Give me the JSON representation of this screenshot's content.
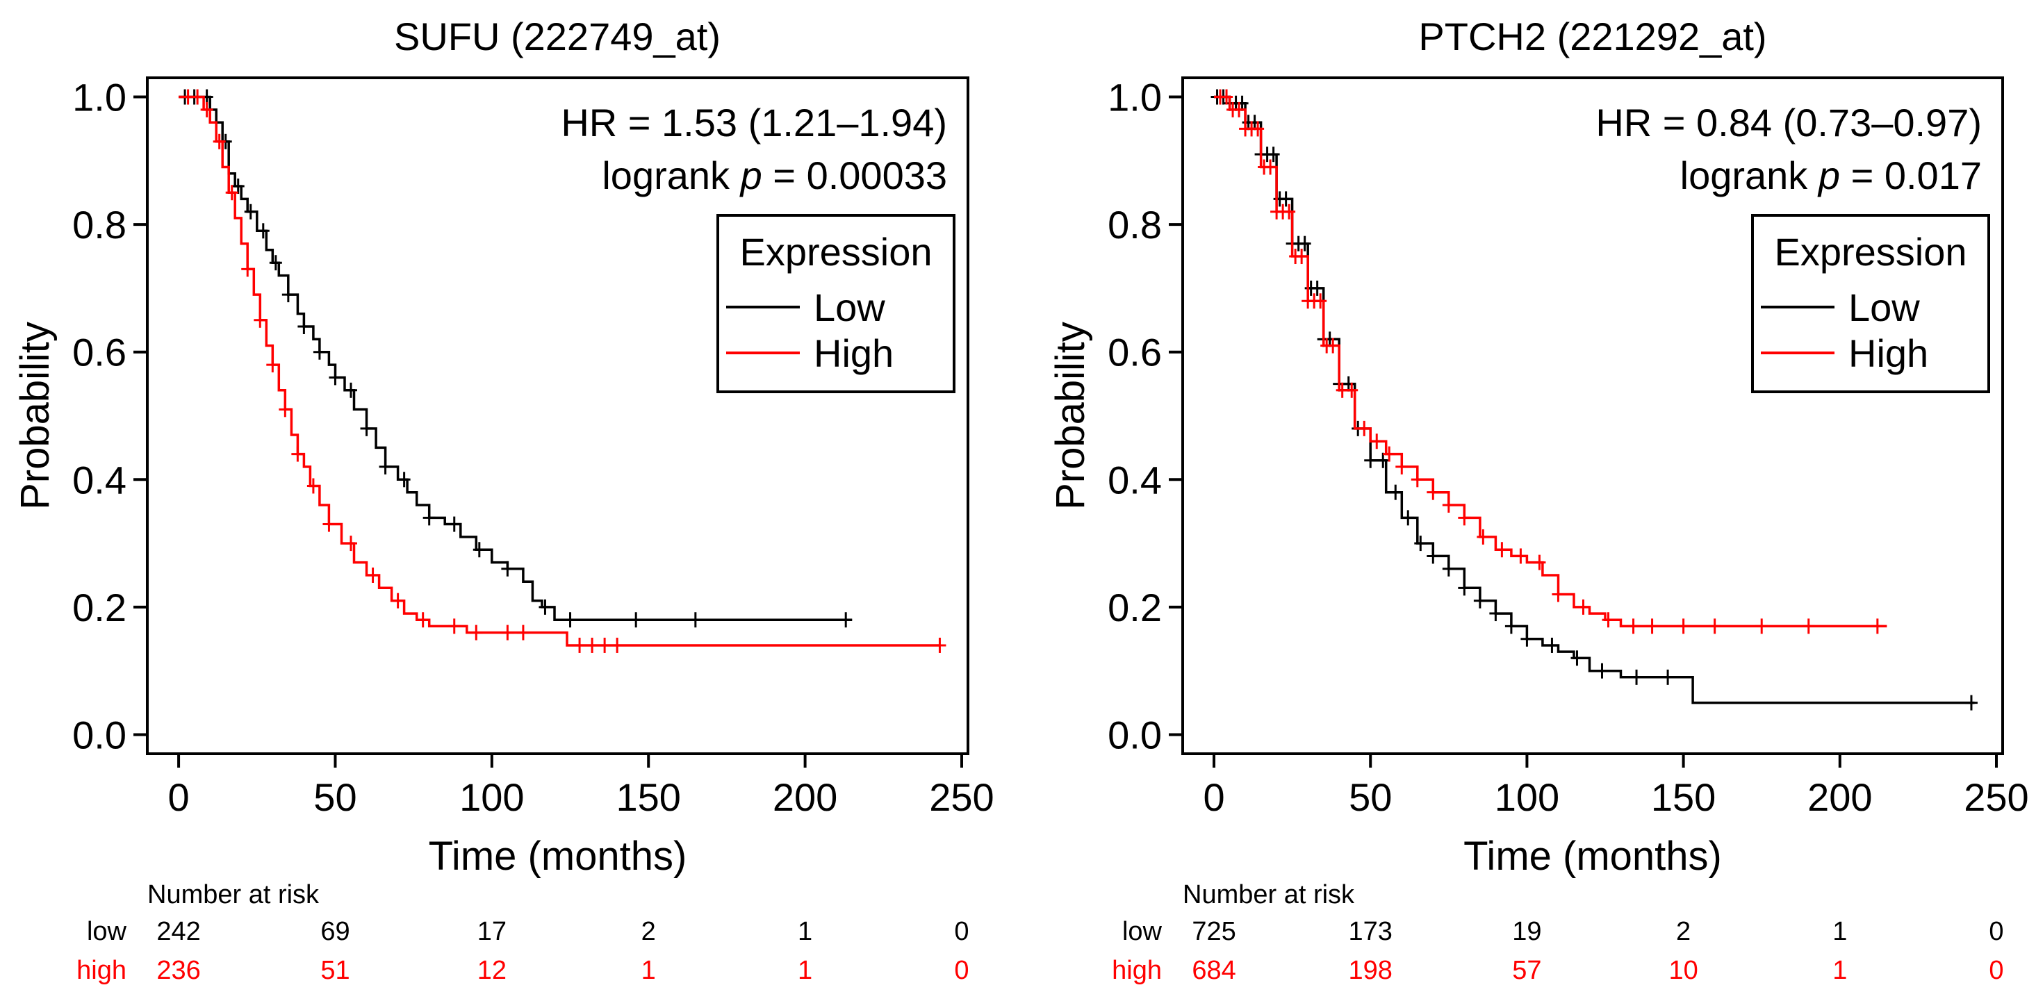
{
  "chart_data": [
    {
      "type": "line",
      "subtype": "kaplan-meier",
      "title": "SUFU (222749_at)",
      "xlabel": "Time (months)",
      "ylabel": "Probability",
      "xlim": [
        -10,
        252
      ],
      "ylim": [
        -0.03,
        1.03
      ],
      "xticks": [
        "0",
        "50",
        "100",
        "150",
        "200",
        "250"
      ],
      "xtick_values": [
        0,
        50,
        100,
        150,
        200,
        250
      ],
      "yticks": [
        "0.0",
        "0.2",
        "0.4",
        "0.6",
        "0.8",
        "1.0"
      ],
      "ytick_values": [
        0,
        0.2,
        0.4,
        0.6,
        0.8,
        1.0
      ],
      "hr_text": "HR = 1.53 (1.21–1.94)",
      "logrank_prefix": "logrank ",
      "logrank_p": "p",
      "logrank_value": " = 0.00033",
      "legend_title": "Expression",
      "legend_position": "top-right",
      "series": [
        {
          "name": "Low",
          "color": "#000000",
          "x": [
            0,
            8,
            10,
            12,
            14,
            16,
            18,
            20,
            22,
            25,
            28,
            30,
            32,
            35,
            38,
            40,
            43,
            45,
            48,
            50,
            53,
            56,
            60,
            63,
            66,
            70,
            73,
            76,
            80,
            85,
            90,
            95,
            100,
            105,
            110,
            113,
            116,
            120,
            123,
            215
          ],
          "y": [
            1.0,
            1.0,
            0.98,
            0.96,
            0.93,
            0.88,
            0.86,
            0.84,
            0.82,
            0.79,
            0.76,
            0.74,
            0.72,
            0.69,
            0.66,
            0.64,
            0.62,
            0.6,
            0.58,
            0.56,
            0.54,
            0.51,
            0.48,
            0.45,
            0.42,
            0.4,
            0.38,
            0.36,
            0.34,
            0.33,
            0.31,
            0.29,
            0.27,
            0.26,
            0.24,
            0.21,
            0.2,
            0.18,
            0.18,
            0.18
          ],
          "censor_x": [
            2,
            5,
            9,
            12,
            15,
            19,
            23,
            27,
            31,
            35,
            40,
            45,
            50,
            55,
            60,
            66,
            72,
            80,
            88,
            96,
            105,
            117,
            125,
            146,
            165,
            213
          ]
        },
        {
          "name": "High",
          "color": "#ff0000",
          "x": [
            0,
            6,
            8,
            10,
            12,
            14,
            16,
            18,
            20,
            22,
            24,
            26,
            28,
            30,
            32,
            34,
            36,
            38,
            40,
            42,
            45,
            48,
            52,
            56,
            60,
            64,
            68,
            72,
            76,
            80,
            85,
            92,
            100,
            110,
            120,
            124,
            243
          ],
          "y": [
            1.0,
            1.0,
            0.98,
            0.96,
            0.93,
            0.89,
            0.85,
            0.81,
            0.77,
            0.73,
            0.69,
            0.65,
            0.61,
            0.58,
            0.54,
            0.51,
            0.47,
            0.44,
            0.42,
            0.39,
            0.36,
            0.33,
            0.3,
            0.27,
            0.25,
            0.23,
            0.21,
            0.19,
            0.18,
            0.17,
            0.17,
            0.16,
            0.16,
            0.16,
            0.16,
            0.14,
            0.14
          ],
          "censor_x": [
            3,
            6,
            9,
            13,
            17,
            22,
            26,
            30,
            34,
            38,
            43,
            48,
            55,
            62,
            70,
            78,
            88,
            95,
            105,
            110,
            128,
            132,
            136,
            140,
            243
          ]
        }
      ],
      "risk_table": {
        "header": "Number at risk",
        "times": [
          0,
          50,
          100,
          150,
          200,
          250
        ],
        "rows": [
          {
            "label": "low",
            "color": "#000000",
            "values": [
              "242",
              "69",
              "17",
              "2",
              "1",
              "0"
            ]
          },
          {
            "label": "high",
            "color": "#ff0000",
            "values": [
              "236",
              "51",
              "12",
              "1",
              "1",
              "0"
            ]
          }
        ]
      }
    },
    {
      "type": "line",
      "subtype": "kaplan-meier",
      "title": "PTCH2 (221292_at)",
      "xlabel": "Time (months)",
      "ylabel": "Probability",
      "xlim": [
        -10,
        252
      ],
      "ylim": [
        -0.03,
        1.03
      ],
      "xticks": [
        "0",
        "50",
        "100",
        "150",
        "200",
        "250"
      ],
      "xtick_values": [
        0,
        50,
        100,
        150,
        200,
        250
      ],
      "yticks": [
        "0.0",
        "0.2",
        "0.4",
        "0.6",
        "0.8",
        "1.0"
      ],
      "ytick_values": [
        0,
        0.2,
        0.4,
        0.6,
        0.8,
        1.0
      ],
      "hr_text": "HR = 0.84 (0.73–0.97)",
      "logrank_prefix": "logrank ",
      "logrank_p": "p",
      "logrank_value": " = 0.017",
      "legend_title": "Expression",
      "legend_position": "top-right",
      "series": [
        {
          "name": "Low",
          "color": "#000000",
          "x": [
            0,
            5,
            10,
            15,
            20,
            25,
            30,
            35,
            40,
            45,
            50,
            55,
            60,
            65,
            70,
            75,
            80,
            85,
            90,
            95,
            100,
            105,
            110,
            115,
            120,
            130,
            140,
            150,
            153,
            243
          ],
          "y": [
            1.0,
            0.99,
            0.96,
            0.91,
            0.84,
            0.77,
            0.7,
            0.62,
            0.55,
            0.48,
            0.43,
            0.38,
            0.34,
            0.3,
            0.28,
            0.26,
            0.23,
            0.21,
            0.19,
            0.17,
            0.15,
            0.14,
            0.13,
            0.12,
            0.1,
            0.09,
            0.09,
            0.09,
            0.05,
            0.05
          ],
          "censor_x": [
            1,
            3,
            5,
            7,
            9,
            11,
            13,
            15,
            17,
            19,
            21,
            23,
            25,
            27,
            29,
            31,
            33,
            35,
            37,
            40,
            43,
            46,
            50,
            54,
            58,
            62,
            66,
            70,
            75,
            80,
            85,
            90,
            95,
            100,
            108,
            116,
            124,
            135,
            145,
            242
          ]
        },
        {
          "name": "High",
          "color": "#ff0000",
          "x": [
            0,
            5,
            10,
            15,
            20,
            25,
            30,
            35,
            40,
            45,
            50,
            55,
            60,
            65,
            70,
            75,
            80,
            85,
            90,
            95,
            100,
            105,
            110,
            115,
            120,
            125,
            130,
            215
          ],
          "y": [
            1.0,
            0.98,
            0.95,
            0.89,
            0.82,
            0.75,
            0.68,
            0.61,
            0.54,
            0.48,
            0.46,
            0.44,
            0.42,
            0.4,
            0.38,
            0.36,
            0.34,
            0.31,
            0.29,
            0.28,
            0.27,
            0.25,
            0.22,
            0.2,
            0.19,
            0.18,
            0.17,
            0.17
          ],
          "censor_x": [
            2,
            4,
            6,
            8,
            10,
            12,
            14,
            16,
            18,
            20,
            22,
            24,
            26,
            28,
            30,
            32,
            34,
            36,
            38,
            41,
            44,
            48,
            52,
            56,
            60,
            65,
            70,
            75,
            80,
            86,
            92,
            98,
            104,
            110,
            118,
            126,
            134,
            140,
            150,
            160,
            175,
            190,
            212
          ]
        }
      ],
      "risk_table": {
        "header": "Number at risk",
        "times": [
          0,
          50,
          100,
          150,
          200,
          250
        ],
        "rows": [
          {
            "label": "low",
            "color": "#000000",
            "values": [
              "725",
              "173",
              "19",
              "2",
              "1",
              "0"
            ]
          },
          {
            "label": "high",
            "color": "#ff0000",
            "values": [
              "684",
              "198",
              "57",
              "10",
              "1",
              "0"
            ]
          }
        ]
      }
    }
  ]
}
